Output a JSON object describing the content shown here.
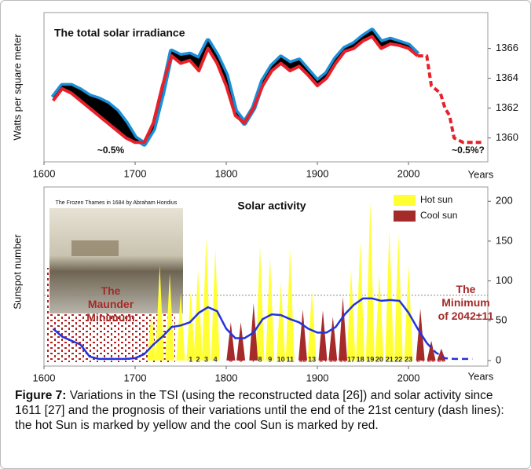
{
  "chart_data": [
    {
      "type": "line",
      "title": "The total solar irradiance",
      "y_label": "Watts per square meter",
      "x_label": "Years",
      "xlim": [
        1600,
        2087
      ],
      "ylim": [
        1358.4,
        1368.4
      ],
      "xticks": [
        1600,
        1700,
        1800,
        1900,
        2000
      ],
      "yticks": [
        1360,
        1362,
        1364,
        1366
      ],
      "fill_between_color": "#000000",
      "annotations": [
        "~0.5%",
        "~0.5%?"
      ],
      "series": [
        {
          "color": "#1a8fd8",
          "x": [
            1610,
            1620,
            1630,
            1640,
            1650,
            1660,
            1670,
            1680,
            1690,
            1700,
            1710,
            1720,
            1730,
            1740,
            1750,
            1760,
            1770,
            1780,
            1790,
            1800,
            1810,
            1820,
            1830,
            1840,
            1850,
            1860,
            1870,
            1880,
            1890,
            1900,
            1910,
            1920,
            1930,
            1940,
            1950,
            1960,
            1970,
            1980,
            1990,
            2000,
            2010
          ],
          "values": [
            1362.7,
            1363.5,
            1363.5,
            1363.2,
            1362.8,
            1362.6,
            1362.3,
            1361.8,
            1361.0,
            1360.0,
            1359.6,
            1360.6,
            1363.0,
            1365.8,
            1365.5,
            1365.6,
            1365.3,
            1366.5,
            1365.5,
            1364.2,
            1361.8,
            1361.0,
            1362.0,
            1363.8,
            1364.8,
            1365.4,
            1365.0,
            1365.2,
            1364.5,
            1363.8,
            1364.3,
            1365.3,
            1366.0,
            1366.3,
            1366.8,
            1367.2,
            1366.4,
            1366.6,
            1366.4,
            1366.2,
            1365.6
          ]
        },
        {
          "color": "#e8202a",
          "x": [
            1610,
            1620,
            1630,
            1640,
            1650,
            1660,
            1670,
            1680,
            1690,
            1700,
            1710,
            1720,
            1730,
            1740,
            1750,
            1760,
            1770,
            1780,
            1790,
            1800,
            1810,
            1820,
            1830,
            1840,
            1850,
            1860,
            1870,
            1880,
            1890,
            1900,
            1910,
            1920,
            1930,
            1940,
            1950,
            1960,
            1970,
            1980,
            1990,
            2000,
            2010
          ],
          "values": [
            1362.5,
            1363.3,
            1363.0,
            1362.5,
            1362.0,
            1361.5,
            1361.0,
            1360.5,
            1360.0,
            1359.7,
            1359.7,
            1361.0,
            1363.5,
            1365.5,
            1365.0,
            1365.2,
            1364.5,
            1366.0,
            1365.0,
            1363.5,
            1361.5,
            1361.0,
            1362.0,
            1363.5,
            1364.5,
            1365.0,
            1364.5,
            1364.8,
            1364.2,
            1363.5,
            1364.0,
            1365.0,
            1365.8,
            1366.0,
            1366.5,
            1366.8,
            1366.0,
            1366.3,
            1366.2,
            1366.0,
            1365.5
          ]
        },
        {
          "color": "#e8202a",
          "dashed": true,
          "x": [
            2010,
            2020,
            2025,
            2035,
            2040,
            2045,
            2050,
            2060,
            2080
          ],
          "values": [
            1365.5,
            1365.5,
            1363.5,
            1363.0,
            1362.0,
            1361.5,
            1360.0,
            1359.7,
            1359.7
          ]
        }
      ]
    },
    {
      "type": "area",
      "title": "Solar activity",
      "y_label": "Sunspot number",
      "x_label": "Years",
      "xlim": [
        1600,
        2087
      ],
      "ylim": [
        -7,
        218
      ],
      "xticks": [
        1600,
        1700,
        1800,
        1900,
        2000
      ],
      "yticks": [
        0,
        50,
        100,
        150,
        200
      ],
      "reference_line": 82,
      "legend": "top-right",
      "inset_title": "The Frozen Thames in 1684 by Abraham Hondius",
      "annotations": [
        "The Maunder Minimum",
        "The Minimum of 2042±11"
      ],
      "series": [
        {
          "name": "Hot sun",
          "color": "#ffff33",
          "kind": "peaks",
          "x": [
            1718,
            1727,
            1738,
            1750,
            1761,
            1769,
            1778,
            1788,
            1837,
            1848,
            1860,
            1870,
            1894,
            1937,
            1947,
            1958,
            1968,
            1979,
            1989,
            2000
          ],
          "values": [
            60,
            120,
            110,
            85,
            86,
            115,
            155,
            140,
            145,
            130,
            98,
            140,
            88,
            115,
            150,
            200,
            110,
            165,
            158,
            120
          ],
          "labels": [
            null,
            null,
            null,
            null,
            "1",
            "2",
            "3",
            "4",
            "8",
            "9",
            "10",
            "11",
            "13",
            "17",
            "18",
            "19",
            "20",
            "21",
            "22",
            "23"
          ]
        },
        {
          "name": "Cool sun",
          "color": "#a52a2a",
          "kind": "peaks",
          "x": [
            1805,
            1816,
            1830,
            1884,
            1906,
            1917,
            1928,
            2013,
            2025,
            2036
          ],
          "values": [
            48,
            48,
            72,
            64,
            63,
            55,
            80,
            65,
            25,
            15
          ],
          "labels": [
            "5",
            "6",
            "7",
            "12",
            "14",
            "15",
            "16",
            "24",
            "25",
            "26"
          ]
        },
        {
          "color": "#2233dd",
          "kind": "line",
          "x": [
            1610,
            1620,
            1630,
            1640,
            1650,
            1660,
            1670,
            1680,
            1690,
            1700,
            1710,
            1720,
            1730,
            1740,
            1750,
            1760,
            1770,
            1780,
            1790,
            1800,
            1810,
            1820,
            1830,
            1840,
            1850,
            1860,
            1870,
            1880,
            1890,
            1900,
            1910,
            1920,
            1930,
            1940,
            1950,
            1960,
            1970,
            1980,
            1990,
            2000,
            2010,
            2020
          ],
          "values": [
            40,
            30,
            25,
            20,
            5,
            2,
            2,
            2,
            2,
            3,
            8,
            20,
            30,
            42,
            44,
            48,
            60,
            67,
            62,
            40,
            28,
            28,
            35,
            52,
            58,
            57,
            52,
            48,
            40,
            35,
            35,
            42,
            58,
            70,
            78,
            78,
            75,
            76,
            75,
            60,
            40,
            22
          ]
        },
        {
          "color": "#2233dd",
          "kind": "line",
          "dashed": true,
          "x": [
            2020,
            2030,
            2040,
            2050,
            2060,
            2070
          ],
          "values": [
            22,
            10,
            3,
            2,
            2,
            2
          ]
        }
      ]
    }
  ],
  "caption": {
    "label": "Figure 7:",
    "text": "Variations in the TSI (using the reconstructed data [26]) and solar activity since 1611 [27] and the prognosis of their variations until the end of the 21st century (dash lines):  the hot Sun is marked by yellow and the cool Sun is marked by red."
  }
}
